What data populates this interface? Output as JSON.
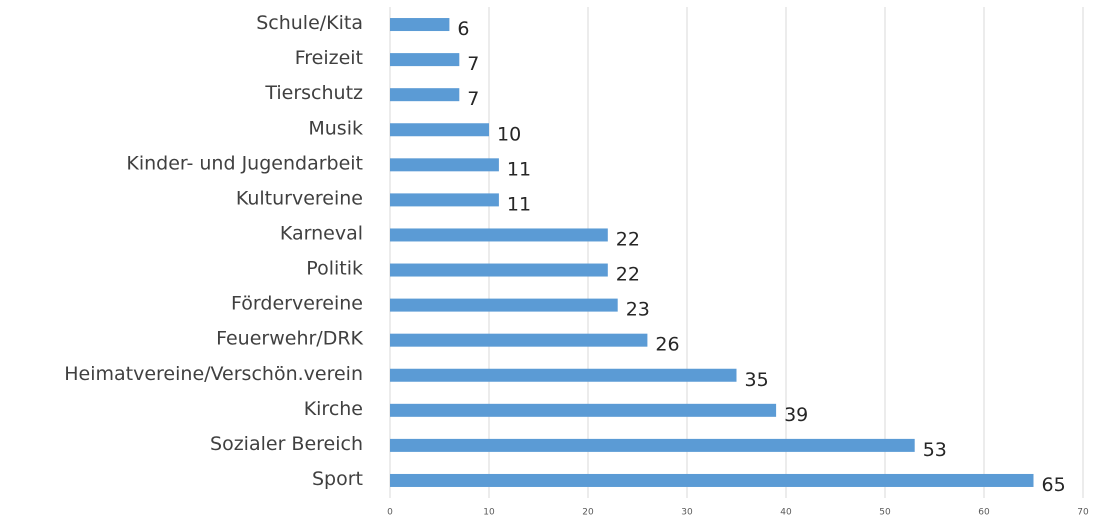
{
  "chart_data": {
    "type": "bar",
    "horizontal": true,
    "categories": [
      "Schule/Kita",
      "Freizeit",
      "Tierschutz",
      "Musik",
      "Kinder- und Jugendarbeit",
      "Kulturvereine",
      "Karneval",
      "Politik",
      "Fördervereine",
      "Feuerwehr/DRK",
      "Heimatvereine/Verschön.verein",
      "Kirche",
      "Sozialer Bereich",
      "Sport"
    ],
    "values": [
      6,
      7,
      7,
      10,
      11,
      11,
      22,
      22,
      23,
      26,
      35,
      39,
      53,
      65
    ],
    "color": "#5b9bd5",
    "xlim": [
      0,
      70
    ],
    "xticks": [
      0,
      10,
      20,
      30,
      40,
      50,
      60,
      70
    ],
    "grid": true
  }
}
